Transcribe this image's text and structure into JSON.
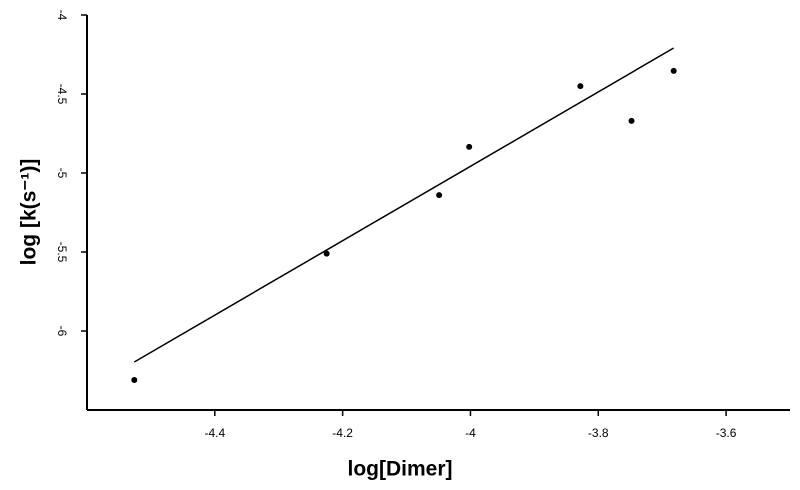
{
  "chart_data": {
    "type": "scatter",
    "x_label": "log[Dimer]",
    "y_label": "log [k(s⁻¹)]",
    "x": [
      -4.526,
      -4.225,
      -4.049,
      -4.002,
      -3.828,
      -3.748,
      -3.682
    ],
    "values": [
      -6.31,
      -5.51,
      -5.14,
      -4.835,
      -4.45,
      -4.67,
      -4.354
    ],
    "color": "#000000",
    "fit": {
      "x": [
        -4.526,
        -3.682
      ],
      "values": [
        -6.196,
        -4.209
      ],
      "color": "#000000"
    },
    "xlim": [
      -4.6,
      -3.5
    ],
    "xticks": [
      -4.4,
      -4.2,
      -4,
      -3.8,
      -3.6
    ],
    "ylim": [
      -6.5,
      -4
    ],
    "yticks": [
      -6,
      -5.5,
      -5,
      -4.5,
      -4
    ],
    "grid": false
  }
}
